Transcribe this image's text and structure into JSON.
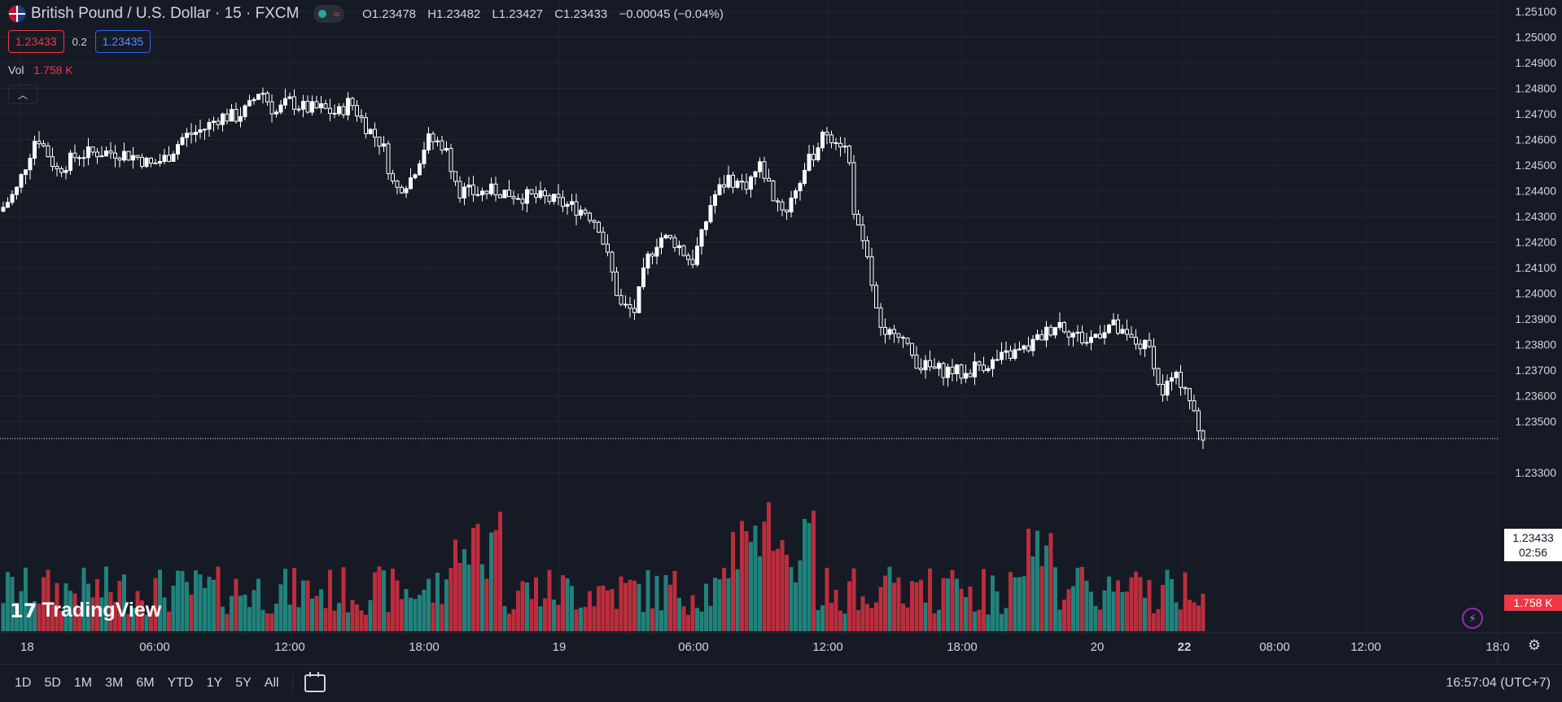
{
  "header": {
    "symbol_title": "British Pound / U.S. Dollar · 15 · FXCM",
    "ohlc": {
      "o_label": "O",
      "o": "1.23478",
      "h_label": "H",
      "h": "1.23482",
      "l_label": "L",
      "l": "1.23427",
      "c_label": "C",
      "c": "1.23433",
      "change": "−0.00045 (−0.04%)"
    },
    "bid": "1.23433",
    "spread": "0.2",
    "ask": "1.23435",
    "vol_label": "Vol",
    "vol_value": "1.758 K",
    "status_icon": "wave-icon"
  },
  "price_axis": {
    "current_price": "1.23433",
    "countdown": "02:56",
    "volume_tag": "1.758 K"
  },
  "branding": {
    "logo_text": "TradingView"
  },
  "bottom_bar": {
    "ranges": [
      "1D",
      "5D",
      "1M",
      "3M",
      "6M",
      "YTD",
      "1Y",
      "5Y",
      "All"
    ],
    "clock": "16:57:04 (UTC+7)"
  },
  "colors": {
    "background": "#161a25",
    "up_volume": "#26a69a",
    "down_volume": "#f23645",
    "candle": "#ffffff",
    "accent_blue": "#2962ff"
  },
  "chart_data": {
    "type": "candlestick",
    "title": "British Pound / U.S. Dollar · 15 · FXCM",
    "y_ticks": [
      "1.25100",
      "1.25000",
      "1.24900",
      "1.24800",
      "1.24700",
      "1.24600",
      "1.24500",
      "1.24400",
      "1.24300",
      "1.24200",
      "1.24100",
      "1.24000",
      "1.23900",
      "1.23800",
      "1.23700",
      "1.23600",
      "1.23500",
      "1.23300"
    ],
    "ylim": [
      1.2322,
      1.2512
    ],
    "x_ticks": [
      "18",
      "06:00",
      "12:00",
      "18:00",
      "19",
      "06:00",
      "12:00",
      "18:00",
      "20",
      "22",
      "08:00",
      "12:00",
      "18:0"
    ],
    "grid": true,
    "close_path": [
      [
        0,
        1.2432
      ],
      [
        20,
        1.244
      ],
      [
        45,
        1.2462
      ],
      [
        70,
        1.2448
      ],
      [
        95,
        1.2454
      ],
      [
        120,
        1.2455
      ],
      [
        145,
        1.2455
      ],
      [
        170,
        1.2453
      ],
      [
        185,
        1.245
      ],
      [
        205,
        1.2453
      ],
      [
        225,
        1.2461
      ],
      [
        250,
        1.2464
      ],
      [
        270,
        1.2469
      ],
      [
        290,
        1.2469
      ],
      [
        305,
        1.2472
      ],
      [
        320,
        1.248
      ],
      [
        338,
        1.247
      ],
      [
        355,
        1.2475
      ],
      [
        375,
        1.2472
      ],
      [
        395,
        1.2472
      ],
      [
        415,
        1.247
      ],
      [
        430,
        1.2475
      ],
      [
        450,
        1.2465
      ],
      [
        470,
        1.2458
      ],
      [
        485,
        1.244
      ],
      [
        505,
        1.2445
      ],
      [
        525,
        1.246
      ],
      [
        545,
        1.2458
      ],
      [
        565,
        1.244
      ],
      [
        585,
        1.2439
      ],
      [
        610,
        1.244
      ],
      [
        640,
        1.2438
      ],
      [
        670,
        1.2437
      ],
      [
        700,
        1.2434
      ],
      [
        720,
        1.2432
      ],
      [
        735,
        1.2427
      ],
      [
        750,
        1.241
      ],
      [
        762,
        1.2395
      ],
      [
        780,
        1.2393
      ],
      [
        795,
        1.2413
      ],
      [
        810,
        1.2422
      ],
      [
        830,
        1.242
      ],
      [
        850,
        1.2412
      ],
      [
        862,
        1.2422
      ],
      [
        875,
        1.2437
      ],
      [
        895,
        1.2445
      ],
      [
        915,
        1.2442
      ],
      [
        935,
        1.245
      ],
      [
        950,
        1.2438
      ],
      [
        965,
        1.2432
      ],
      [
        985,
        1.2446
      ],
      [
        1000,
        1.2455
      ],
      [
        1015,
        1.2463
      ],
      [
        1030,
        1.246
      ],
      [
        1042,
        1.2455
      ],
      [
        1050,
        1.243
      ],
      [
        1058,
        1.242
      ],
      [
        1068,
        1.241
      ],
      [
        1075,
        1.2395
      ],
      [
        1085,
        1.238
      ],
      [
        1100,
        1.2388
      ],
      [
        1115,
        1.2378
      ],
      [
        1130,
        1.2372
      ],
      [
        1150,
        1.237
      ],
      [
        1170,
        1.237
      ],
      [
        1185,
        1.2368
      ],
      [
        1200,
        1.2372
      ],
      [
        1220,
        1.2373
      ],
      [
        1240,
        1.2376
      ],
      [
        1260,
        1.2378
      ],
      [
        1275,
        1.2382
      ],
      [
        1290,
        1.2386
      ],
      [
        1300,
        1.2389
      ],
      [
        1315,
        1.2385
      ],
      [
        1335,
        1.2381
      ],
      [
        1350,
        1.2385
      ],
      [
        1365,
        1.2388
      ],
      [
        1380,
        1.2383
      ],
      [
        1400,
        1.238
      ],
      [
        1415,
        1.2378
      ],
      [
        1425,
        1.236
      ],
      [
        1440,
        1.2367
      ],
      [
        1455,
        1.2365
      ],
      [
        1465,
        1.2355
      ],
      [
        1474,
        1.2344
      ]
    ],
    "volume": {
      "max_height": 160,
      "last_value": "1.758 K"
    }
  }
}
